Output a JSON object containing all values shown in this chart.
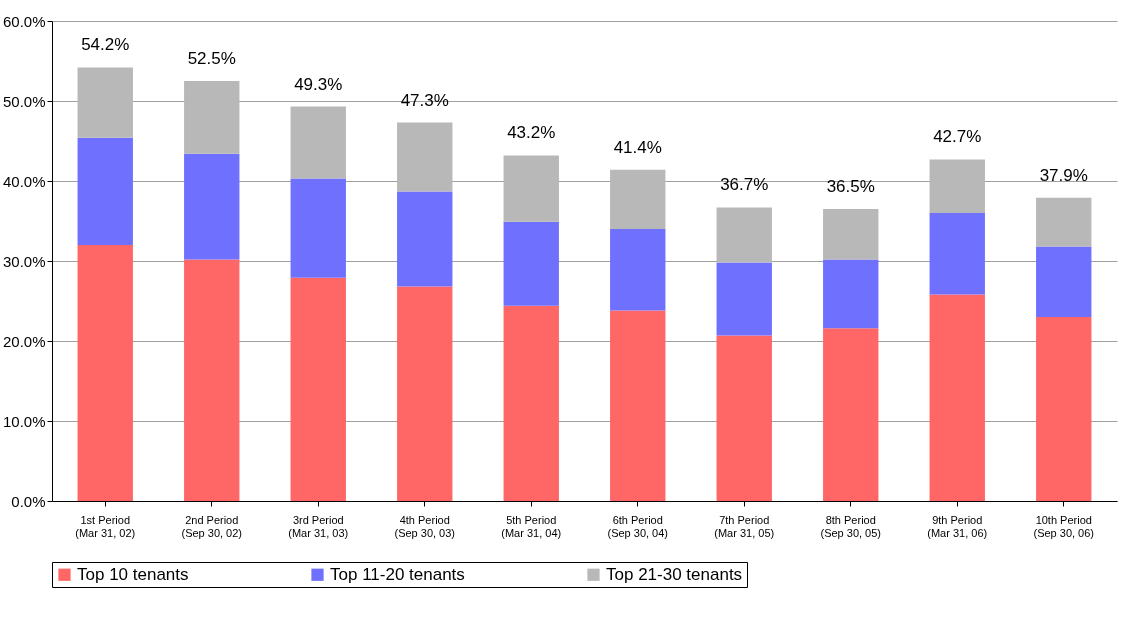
{
  "chart_data": {
    "type": "bar",
    "stacked": true,
    "categories": [
      "1st Period\n(Mar 31, 02)",
      "2nd Period\n(Sep 30, 02)",
      "3rd Period\n(Mar 31, 03)",
      "4th Period\n(Sep 30, 03)",
      "5th Period\n(Mar 31, 04)",
      "6th Period\n(Sep 30, 04)",
      "7th Period\n(Mar 31, 05)",
      "8th Period\n(Sep 30, 05)",
      "9th Period\n(Mar 31, 06)",
      "10th Period\n(Sep 30, 06)"
    ],
    "series": [
      {
        "name": "Top 10 tenants",
        "color": "#ff6666",
        "values": [
          32.0,
          30.2,
          27.9,
          26.8,
          24.4,
          23.8,
          20.7,
          21.6,
          25.8,
          23.0
        ]
      },
      {
        "name": "Top 11-20 tenants",
        "color": "#7070ff",
        "values": [
          13.4,
          13.2,
          12.4,
          11.9,
          10.5,
          10.2,
          9.1,
          8.6,
          10.2,
          8.8
        ]
      },
      {
        "name": "Top 21-30 tenants",
        "color": "#b8b8b8",
        "values": [
          8.8,
          9.1,
          9.0,
          8.6,
          8.3,
          7.4,
          6.9,
          6.3,
          6.7,
          6.1
        ]
      }
    ],
    "totals": [
      "54.2%",
      "52.5%",
      "49.3%",
      "47.3%",
      "43.2%",
      "41.4%",
      "36.7%",
      "36.5%",
      "42.7%",
      "37.9%"
    ],
    "ylim": [
      0,
      60
    ],
    "yticks": [
      {
        "value": 0,
        "label": "0.0%"
      },
      {
        "value": 10,
        "label": "10.0%"
      },
      {
        "value": 20,
        "label": "20.0%"
      },
      {
        "value": 30,
        "label": "30.0%"
      },
      {
        "value": 40,
        "label": "40.0%"
      },
      {
        "value": 50,
        "label": "50.0%"
      },
      {
        "value": 60,
        "label": "60.0%"
      }
    ],
    "grid": "y",
    "legend": "bottom"
  }
}
